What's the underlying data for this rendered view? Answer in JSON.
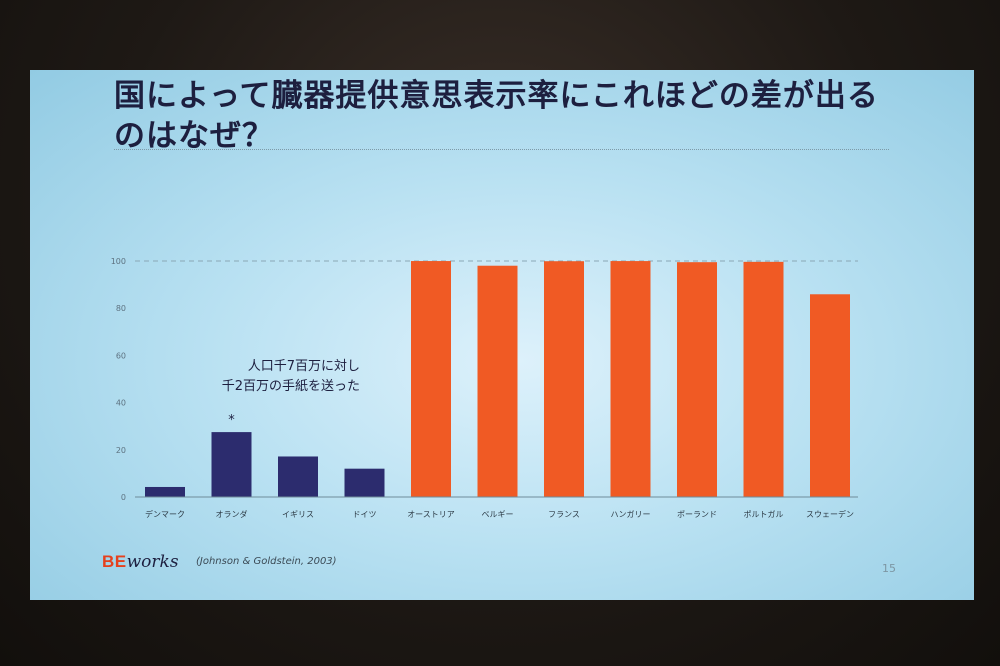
{
  "slide": {
    "title": "国によって臓器提供意思表示率にこれほどの差が出るのはなぜ？",
    "annotation_lines": [
      "人口千7百万に対し",
      "千2百万の手紙を送った"
    ],
    "marker": "*",
    "logo_be": "BE",
    "logo_works": "works",
    "citation": "(Johnson & Goldstein, 2003)",
    "page_number": "15"
  },
  "colors": {
    "opt_in": "#2c2c6e",
    "opt_out": "#f05a24",
    "logo_accent": "#e5401d"
  },
  "chart_data": {
    "type": "bar",
    "categories": [
      "デンマーク",
      "オランダ",
      "イギリス",
      "ドイツ",
      "オーストリア",
      "ベルギー",
      "フランス",
      "ハンガリー",
      "ポーランド",
      "ポルトガル",
      "スウェーデン"
    ],
    "values": [
      4.25,
      27.5,
      17.17,
      12,
      99.98,
      98,
      99.91,
      99.97,
      99.5,
      99.64,
      85.9
    ],
    "groups": [
      "opt_in",
      "opt_in",
      "opt_in",
      "opt_in",
      "opt_out",
      "opt_out",
      "opt_out",
      "opt_out",
      "opt_out",
      "opt_out",
      "opt_out"
    ],
    "ylim": [
      0,
      100
    ],
    "yticks": [
      0,
      20,
      40,
      60,
      80,
      100
    ],
    "grid": "dashed line at 100",
    "starred_category": "オランダ",
    "title": "",
    "xlabel": "",
    "ylabel": ""
  }
}
